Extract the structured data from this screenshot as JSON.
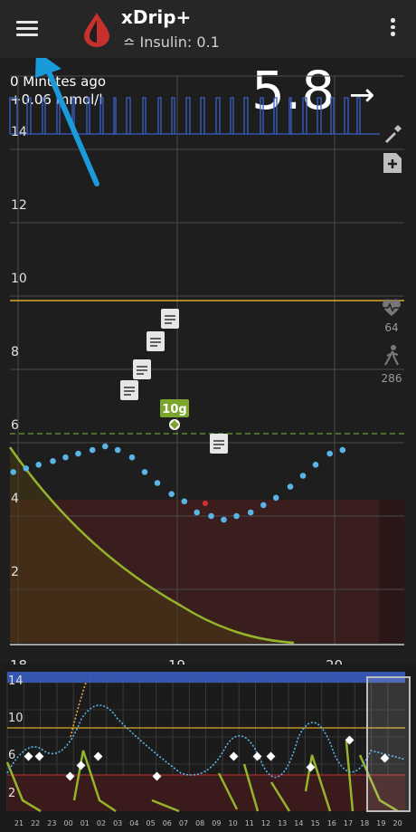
{
  "app": {
    "title": "xDrip+",
    "subtitle": "≏ Insulin: 0.1",
    "menu_icon": "hamburger-menu-icon",
    "overflow_icon": "more-vert-icon"
  },
  "status": {
    "time_ago": "0 Minutes ago",
    "delta": "+0.06 mmol/l",
    "bg_value": "5.8",
    "trend_arrow": "→"
  },
  "side_panel": {
    "heart_rate": "64",
    "steps": "286"
  },
  "main_chart": {
    "y_ticks": [
      "14",
      "12",
      "10",
      "8",
      "6",
      "4",
      "2"
    ],
    "x_ticks": [
      "18",
      "19",
      "20"
    ],
    "treatment_label": "10g"
  },
  "preview_chart": {
    "y_ticks": [
      "14",
      "10",
      "6",
      "2"
    ],
    "x_ticks": [
      "21",
      "22",
      "23",
      "00",
      "01",
      "02",
      "03",
      "04",
      "05",
      "06",
      "07",
      "08",
      "09",
      "10",
      "11",
      "12",
      "13",
      "14",
      "15",
      "16",
      "17",
      "18",
      "19",
      "20"
    ]
  },
  "colors": {
    "background": "#1e1e1e",
    "appbar": "#262626",
    "bg_dots": "#5ab4e6",
    "low_zone": "#3a1e1e",
    "high_line": "#d9a927",
    "target_line": "#6c9a30",
    "iob_line": "#94b42c",
    "treatment": "#7ca52b",
    "annotation_arrow": "#1b9ad9"
  },
  "chart_data": {
    "type": "scatter",
    "x_axis_hours": [
      18,
      19,
      20
    ],
    "ylim": [
      0,
      14.5
    ],
    "series": [
      {
        "x": [
          17.97,
          18.05,
          18.13,
          18.22,
          18.3,
          18.38,
          18.47,
          18.55,
          18.63,
          18.72,
          18.8,
          18.88,
          18.97,
          19.05,
          19.13,
          19.22,
          19.3,
          19.38,
          19.47,
          19.55,
          19.63,
          19.72,
          19.8,
          19.88,
          19.97,
          20.05
        ],
        "values": [
          5.2,
          5.3,
          5.4,
          5.5,
          5.6,
          5.7,
          5.8,
          5.9,
          5.8,
          5.6,
          5.2,
          4.9,
          4.6,
          4.4,
          4.1,
          4.0,
          3.9,
          4.0,
          4.1,
          4.3,
          4.5,
          4.8,
          5.1,
          5.4,
          5.7,
          5.8
        ]
      }
    ],
    "high_line": 9.4,
    "target_line": 5.8,
    "low_line": 4.0,
    "treatments": [
      {
        "x": 18.97,
        "value": 5.9,
        "label": "10g"
      }
    ]
  }
}
